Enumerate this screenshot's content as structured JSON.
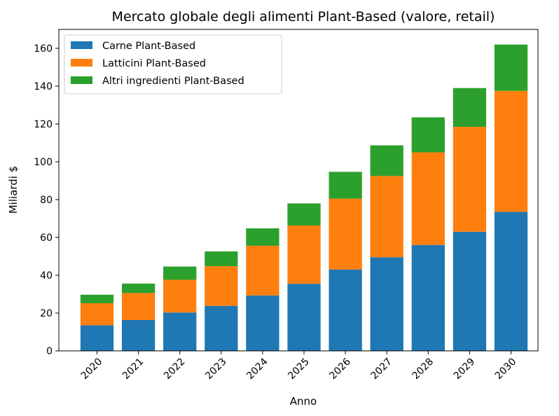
{
  "chart_data": {
    "type": "bar",
    "stacked": true,
    "title": "Mercato globale degli alimenti Plant-Based (valore, retail)",
    "xlabel": "Anno",
    "ylabel": "Miliardi $",
    "ylim": [
      0,
      170
    ],
    "yticks": [
      0,
      20,
      40,
      60,
      80,
      100,
      120,
      140,
      160
    ],
    "categories": [
      "2020",
      "2021",
      "2022",
      "2023",
      "2024",
      "2025",
      "2026",
      "2027",
      "2028",
      "2029",
      "2030"
    ],
    "legend_position": "top-left",
    "series": [
      {
        "name": "Carne Plant-Based",
        "color": "#1f77b4",
        "values": [
          13.5,
          16.3,
          20.3,
          23.8,
          29.3,
          35.5,
          43,
          49.5,
          56,
          63,
          73.5
        ]
      },
      {
        "name": "Latticini Plant-Based",
        "color": "#ff7f0e",
        "values": [
          11.7,
          14.3,
          17.3,
          21,
          26.3,
          30.8,
          37.5,
          43,
          49,
          55.5,
          64
        ]
      },
      {
        "name": "Altri ingredienti Plant-Based",
        "color": "#2ca02c",
        "values": [
          4.5,
          5,
          7,
          7.8,
          9.2,
          11.7,
          14.2,
          16.2,
          18.5,
          20.5,
          24.5
        ]
      }
    ]
  }
}
